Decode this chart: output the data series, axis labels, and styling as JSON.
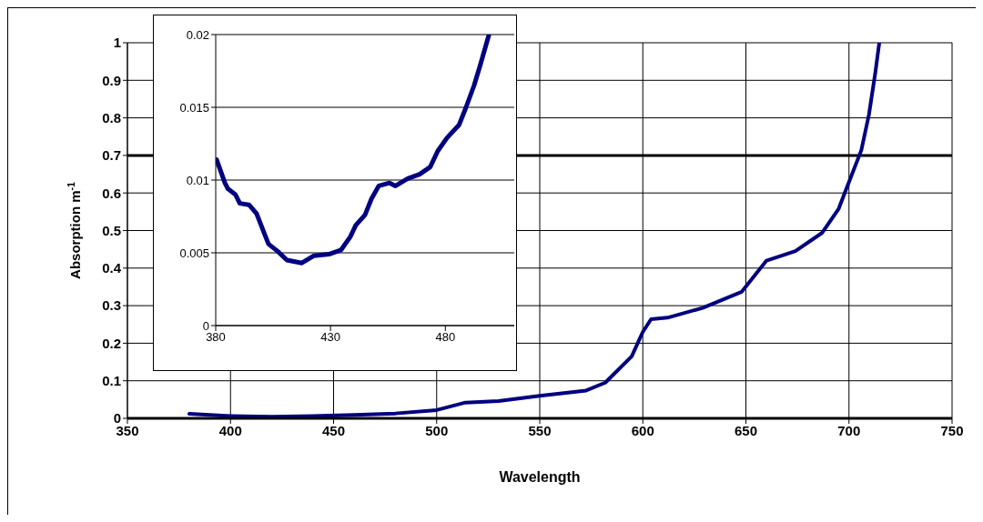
{
  "chart_data": [
    {
      "type": "line",
      "xlabel": "Wavelength",
      "ylabel": "Absorption m$^{-1}$",
      "xlim": [
        350,
        750
      ],
      "xticks": [
        350,
        400,
        450,
        500,
        550,
        600,
        650,
        700,
        750
      ],
      "ylim": [
        0,
        1
      ],
      "yticks": [
        0,
        0.1,
        0.2,
        0.3,
        0.4,
        0.5,
        0.6,
        0.7,
        0.8,
        0.9,
        1
      ],
      "grid": true,
      "marker": "none",
      "line_style": "solid",
      "ref_lines": [
        {
          "axis": "y",
          "value": 0.7
        }
      ],
      "series": [
        {
          "color": "#000080",
          "x": [
            380,
            400,
            420,
            440,
            460,
            480,
            500,
            514,
            530,
            550,
            572.5,
            581.8,
            594.6,
            600,
            604,
            612,
            629,
            648,
            660,
            674,
            687,
            695,
            699,
            706,
            709.7,
            712.8,
            714.7
          ],
          "values": [
            0.012,
            0.006,
            0.004,
            0.006,
            0.009,
            0.013,
            0.022,
            0.042,
            0.046,
            0.06,
            0.074,
            0.095,
            0.165,
            0.23,
            0.264,
            0.268,
            0.294,
            0.337,
            0.42,
            0.445,
            0.494,
            0.558,
            0.615,
            0.714,
            0.809,
            0.921,
            1
          ]
        }
      ]
    },
    {
      "type": "line",
      "xlim": [
        380,
        510
      ],
      "xticks": [
        380,
        430,
        480
      ],
      "ylim": [
        0,
        0.02
      ],
      "yticks": [
        0,
        0.005,
        0.01,
        0.015,
        0.02
      ],
      "grid": "y",
      "marker": "none",
      "line_style": "solid",
      "series": [
        {
          "color": "#000080",
          "x": [
            380.4,
            384,
            385.3,
            388.6,
            390.5,
            394.5,
            397.8,
            401,
            403,
            407,
            411,
            417.5,
            422.8,
            429.3,
            434.6,
            438.6,
            441,
            445,
            447.8,
            451,
            455.7,
            458.3,
            463.6,
            468.8,
            473.4,
            476.7,
            480.7,
            486,
            489,
            492.5,
            495,
            499
          ],
          "values": [
            0.0114,
            0.0098,
            0.0094,
            0.009,
            0.0084,
            0.0083,
            0.0077,
            0.0064,
            0.0056,
            0.0051,
            0.0045,
            0.0043,
            0.0048,
            0.0049,
            0.0052,
            0.0061,
            0.0069,
            0.0076,
            0.0087,
            0.0096,
            0.0098,
            0.0096,
            0.0101,
            0.0104,
            0.0109,
            0.012,
            0.0129,
            0.0138,
            0.015,
            0.0165,
            0.0178,
            0.02
          ]
        }
      ]
    }
  ]
}
